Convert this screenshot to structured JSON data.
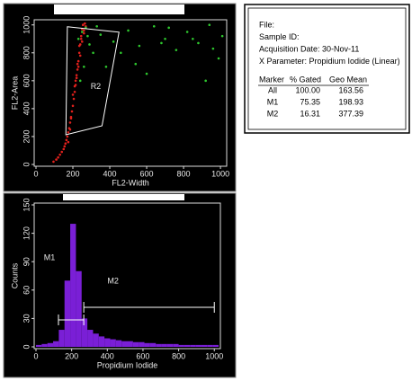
{
  "chart_data": [
    {
      "type": "scatter",
      "xlabel": "FL2-Width",
      "ylabel": "FL2-Area",
      "xlim": [
        0,
        1024
      ],
      "ylim": [
        0,
        1024
      ],
      "xticks": [
        0,
        200,
        400,
        600,
        800,
        1000
      ],
      "yticks": [
        0,
        200,
        400,
        600,
        800,
        1000
      ],
      "series": [
        {
          "color": "#e0201c",
          "x": [
            95,
            110,
            120,
            130,
            140,
            150,
            155,
            160,
            165,
            170,
            175,
            180,
            185,
            190,
            195,
            200,
            205,
            210,
            215,
            220,
            225,
            230,
            235,
            240,
            245,
            250,
            255,
            260,
            200,
            210,
            220,
            230,
            240,
            250,
            260,
            270,
            190,
            215,
            235,
            255,
            175,
            185,
            225,
            245,
            265
          ],
          "values": [
            20,
            35,
            50,
            70,
            90,
            110,
            130,
            150,
            175,
            200,
            230,
            260,
            300,
            340,
            380,
            420,
            470,
            520,
            570,
            620,
            680,
            740,
            800,
            860,
            920,
            970,
            1000,
            960,
            500,
            560,
            640,
            700,
            780,
            880,
            940,
            990,
            330,
            600,
            850,
            1000,
            160,
            250,
            720,
            900,
            1010
          ]
        },
        {
          "color": "#2ec82e",
          "x": [
            230,
            250,
            270,
            290,
            310,
            260,
            280,
            240,
            350,
            420,
            500,
            560,
            640,
            700,
            760,
            820,
            880,
            940,
            990,
            1010,
            380,
            460,
            600,
            720,
            850,
            920,
            330,
            540,
            680,
            960
          ],
          "values": [
            900,
            950,
            980,
            860,
            800,
            700,
            920,
            600,
            930,
            880,
            960,
            850,
            990,
            900,
            820,
            950,
            870,
            1000,
            760,
            920,
            700,
            800,
            650,
            980,
            900,
            600,
            990,
            720,
            870,
            830
          ]
        }
      ],
      "regions": [
        {
          "label": "R2",
          "x": [
            170,
            450,
            358,
            162
          ],
          "y": [
            987,
            948,
            277,
            213
          ],
          "color": "#ffffff"
        }
      ]
    },
    {
      "type": "histogram",
      "xlabel": "Propidium Iodide",
      "ylabel": "Counts",
      "color": "#7a1fd6",
      "xlim": [
        0,
        1024
      ],
      "ylim": [
        0,
        150
      ],
      "xticks": [
        0,
        200,
        400,
        600,
        800,
        1000
      ],
      "yticks": [
        0,
        30,
        60,
        90,
        120,
        150
      ],
      "bins": [
        0,
        32,
        64,
        96,
        128,
        160,
        192,
        224,
        256,
        288,
        320,
        352,
        384,
        416,
        448,
        480,
        512,
        544,
        576,
        608,
        640,
        672,
        704,
        736,
        768,
        800,
        832,
        864,
        896,
        928,
        960,
        992,
        1024
      ],
      "values": [
        2,
        3,
        4,
        6,
        18,
        70,
        130,
        80,
        30,
        18,
        14,
        11,
        9,
        8,
        7,
        6,
        6,
        5,
        5,
        4,
        4,
        3,
        3,
        3,
        3,
        2,
        2,
        2,
        2,
        2,
        2,
        2
      ],
      "markers": [
        {
          "label": "M1",
          "range": [
            126,
            268
          ]
        },
        {
          "label": "M2",
          "range": [
            268,
            1000
          ]
        }
      ]
    }
  ],
  "stats": {
    "lines": [
      "File:",
      "Sample ID:",
      "Acquisition Date: 30-Nov-11",
      "X Parameter: Propidium Iodide (Linear)"
    ],
    "header": [
      "Marker",
      "% Gated",
      "Geo Mean"
    ],
    "rows": [
      [
        "All",
        "100.00",
        "163.56"
      ],
      [
        "M1",
        "75.35",
        "198.93"
      ],
      [
        "M2",
        "16.31",
        "377.39"
      ]
    ]
  }
}
